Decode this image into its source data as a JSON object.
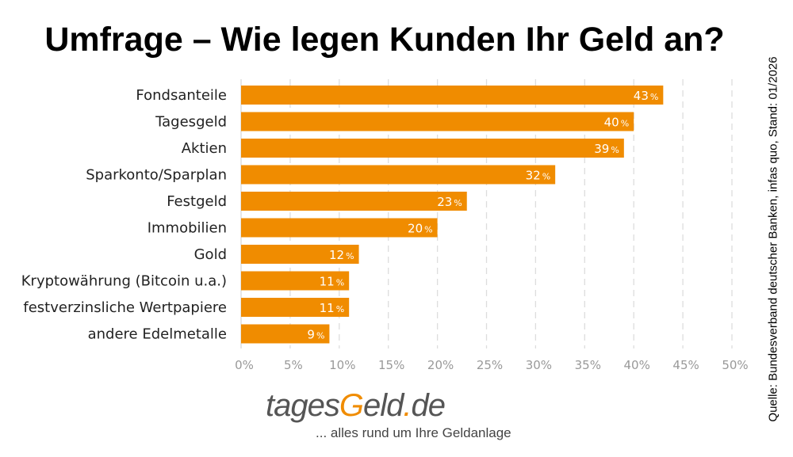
{
  "chart_data": {
    "type": "bar",
    "orientation": "horizontal",
    "title": "Umfrage – Wie legen Kunden Ihr Geld an?",
    "categories": [
      "Fondsanteile",
      "Tagesgeld",
      "Aktien",
      "Sparkonto/Sparplan",
      "Festgeld",
      "Immobilien",
      "Gold",
      "Kryptowährung (Bitcoin u.a.)",
      "festverzinsliche Wertpapiere",
      "andere Edelmetalle"
    ],
    "values": [
      43,
      40,
      39,
      32,
      23,
      20,
      12,
      11,
      11,
      9
    ],
    "value_suffix": "%",
    "xlim": [
      0,
      50
    ],
    "xticks": [
      "0%",
      "5%",
      "10%",
      "15%",
      "20%",
      "25%",
      "30%",
      "35%",
      "40%",
      "45%",
      "50%"
    ],
    "grid": "vertical dashed",
    "bar_color": "#f08c00",
    "label_color": "#ffffff",
    "tick_color": "#999999"
  },
  "source": "Quelle: Bundesverband deutscher Banken, infas quo, Stand: 01/2026",
  "logo": {
    "part1": "tages",
    "part2": "G",
    "part3": "eld",
    "part4": ".",
    "part5": "de"
  },
  "tagline": "... alles rund um Ihre Geldanlage"
}
